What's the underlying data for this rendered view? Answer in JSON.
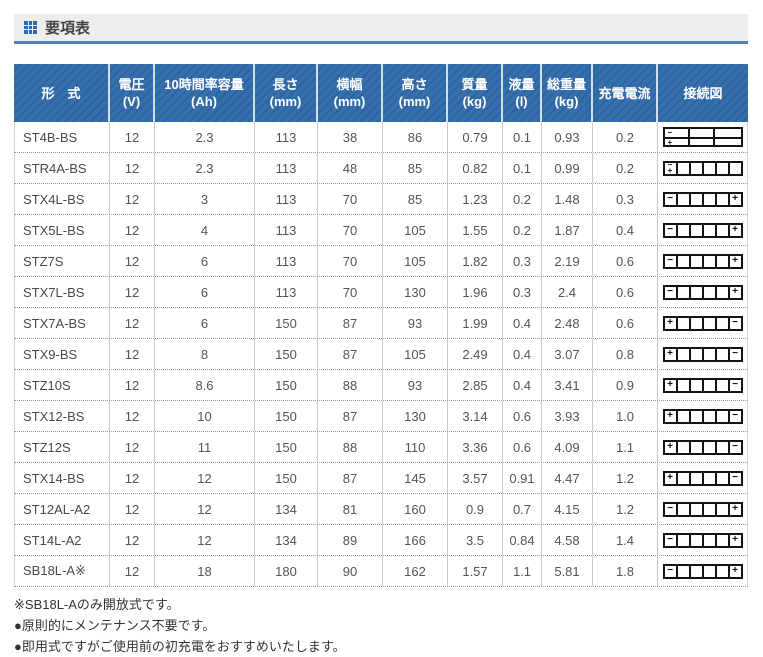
{
  "page": {
    "title": "要項表"
  },
  "icons": {
    "title_marker": "grid-icon"
  },
  "colors": {
    "header_bg": "#326eac",
    "header_stripe": "#2e649c",
    "title_accent": "#4c80b6",
    "title_bar_bg": "#ededed",
    "cell_text": "#555555"
  },
  "table": {
    "headers": [
      {
        "key": "model",
        "label": "形　式",
        "unit": ""
      },
      {
        "key": "voltage",
        "label": "電圧",
        "unit": "(V)"
      },
      {
        "key": "capacity",
        "label": "10時間率容量",
        "unit": "(Ah)"
      },
      {
        "key": "length",
        "label": "長さ",
        "unit": "(mm)"
      },
      {
        "key": "width",
        "label": "横幅",
        "unit": "(mm)"
      },
      {
        "key": "height",
        "label": "高さ",
        "unit": "(mm)"
      },
      {
        "key": "mass",
        "label": "質量",
        "unit": "(kg)"
      },
      {
        "key": "liquid",
        "label": "液量",
        "unit": "(l)"
      },
      {
        "key": "total_weight",
        "label": "総重量",
        "unit": "(kg)"
      },
      {
        "key": "charge_current",
        "label": "充電電流",
        "unit": ""
      },
      {
        "key": "diagram",
        "label": "接続図",
        "unit": ""
      }
    ],
    "rows": [
      {
        "model": "ST4B-BS",
        "voltage": "12",
        "capacity": "2.3",
        "length": "113",
        "width": "38",
        "height": "86",
        "mass": "0.79",
        "liquid": "0.1",
        "total_weight": "0.93",
        "charge_current": "0.2",
        "diagram": "grid-3x2"
      },
      {
        "model": "STR4A-BS",
        "voltage": "12",
        "capacity": "2.3",
        "length": "113",
        "width": "48",
        "height": "85",
        "mass": "0.82",
        "liquid": "0.1",
        "total_weight": "0.99",
        "charge_current": "0.2",
        "diagram": "stack-first"
      },
      {
        "model": "STX4L-BS",
        "voltage": "12",
        "capacity": "3",
        "length": "113",
        "width": "70",
        "height": "85",
        "mass": "1.23",
        "liquid": "0.2",
        "total_weight": "1.48",
        "charge_current": "0.3",
        "diagram": "minus-plus"
      },
      {
        "model": "STX5L-BS",
        "voltage": "12",
        "capacity": "4",
        "length": "113",
        "width": "70",
        "height": "105",
        "mass": "1.55",
        "liquid": "0.2",
        "total_weight": "1.87",
        "charge_current": "0.4",
        "diagram": "minus-plus"
      },
      {
        "model": "STZ7S",
        "voltage": "12",
        "capacity": "6",
        "length": "113",
        "width": "70",
        "height": "105",
        "mass": "1.82",
        "liquid": "0.3",
        "total_weight": "2.19",
        "charge_current": "0.6",
        "diagram": "minus-plus"
      },
      {
        "model": "STX7L-BS",
        "voltage": "12",
        "capacity": "6",
        "length": "113",
        "width": "70",
        "height": "130",
        "mass": "1.96",
        "liquid": "0.3",
        "total_weight": "2.4",
        "charge_current": "0.6",
        "diagram": "minus-plus"
      },
      {
        "model": "STX7A-BS",
        "voltage": "12",
        "capacity": "6",
        "length": "150",
        "width": "87",
        "height": "93",
        "mass": "1.99",
        "liquid": "0.4",
        "total_weight": "2.48",
        "charge_current": "0.6",
        "diagram": "plus-minus"
      },
      {
        "model": "STX9-BS",
        "voltage": "12",
        "capacity": "8",
        "length": "150",
        "width": "87",
        "height": "105",
        "mass": "2.49",
        "liquid": "0.4",
        "total_weight": "3.07",
        "charge_current": "0.8",
        "diagram": "plus-minus"
      },
      {
        "model": "STZ10S",
        "voltage": "12",
        "capacity": "8.6",
        "length": "150",
        "width": "88",
        "height": "93",
        "mass": "2.85",
        "liquid": "0.4",
        "total_weight": "3.41",
        "charge_current": "0.9",
        "diagram": "plus-minus"
      },
      {
        "model": "STX12-BS",
        "voltage": "12",
        "capacity": "10",
        "length": "150",
        "width": "87",
        "height": "130",
        "mass": "3.14",
        "liquid": "0.6",
        "total_weight": "3.93",
        "charge_current": "1.0",
        "diagram": "plus-minus"
      },
      {
        "model": "STZ12S",
        "voltage": "12",
        "capacity": "11",
        "length": "150",
        "width": "88",
        "height": "110",
        "mass": "3.36",
        "liquid": "0.6",
        "total_weight": "4.09",
        "charge_current": "1.1",
        "diagram": "plus-minus"
      },
      {
        "model": "STX14-BS",
        "voltage": "12",
        "capacity": "12",
        "length": "150",
        "width": "87",
        "height": "145",
        "mass": "3.57",
        "liquid": "0.91",
        "total_weight": "4.47",
        "charge_current": "1.2",
        "diagram": "plus-minus"
      },
      {
        "model": "ST12AL-A2",
        "voltage": "12",
        "capacity": "12",
        "length": "134",
        "width": "81",
        "height": "160",
        "mass": "0.9",
        "liquid": "0.7",
        "total_weight": "4.15",
        "charge_current": "1.2",
        "diagram": "minus-plus"
      },
      {
        "model": "ST14L-A2",
        "voltage": "12",
        "capacity": "12",
        "length": "134",
        "width": "89",
        "height": "166",
        "mass": "3.5",
        "liquid": "0.84",
        "total_weight": "4.58",
        "charge_current": "1.4",
        "diagram": "minus-plus"
      },
      {
        "model": "SB18L-A※",
        "voltage": "12",
        "capacity": "18",
        "length": "180",
        "width": "90",
        "height": "162",
        "mass": "1.57",
        "liquid": "1.1",
        "total_weight": "5.81",
        "charge_current": "1.8",
        "diagram": "minus-plus"
      }
    ]
  },
  "notes": [
    "※SB18L-Aのみ開放式です。",
    "●原則的にメンテナンス不要です。",
    "●即用式ですがご使用前の初充電をおすすめいたします。"
  ]
}
